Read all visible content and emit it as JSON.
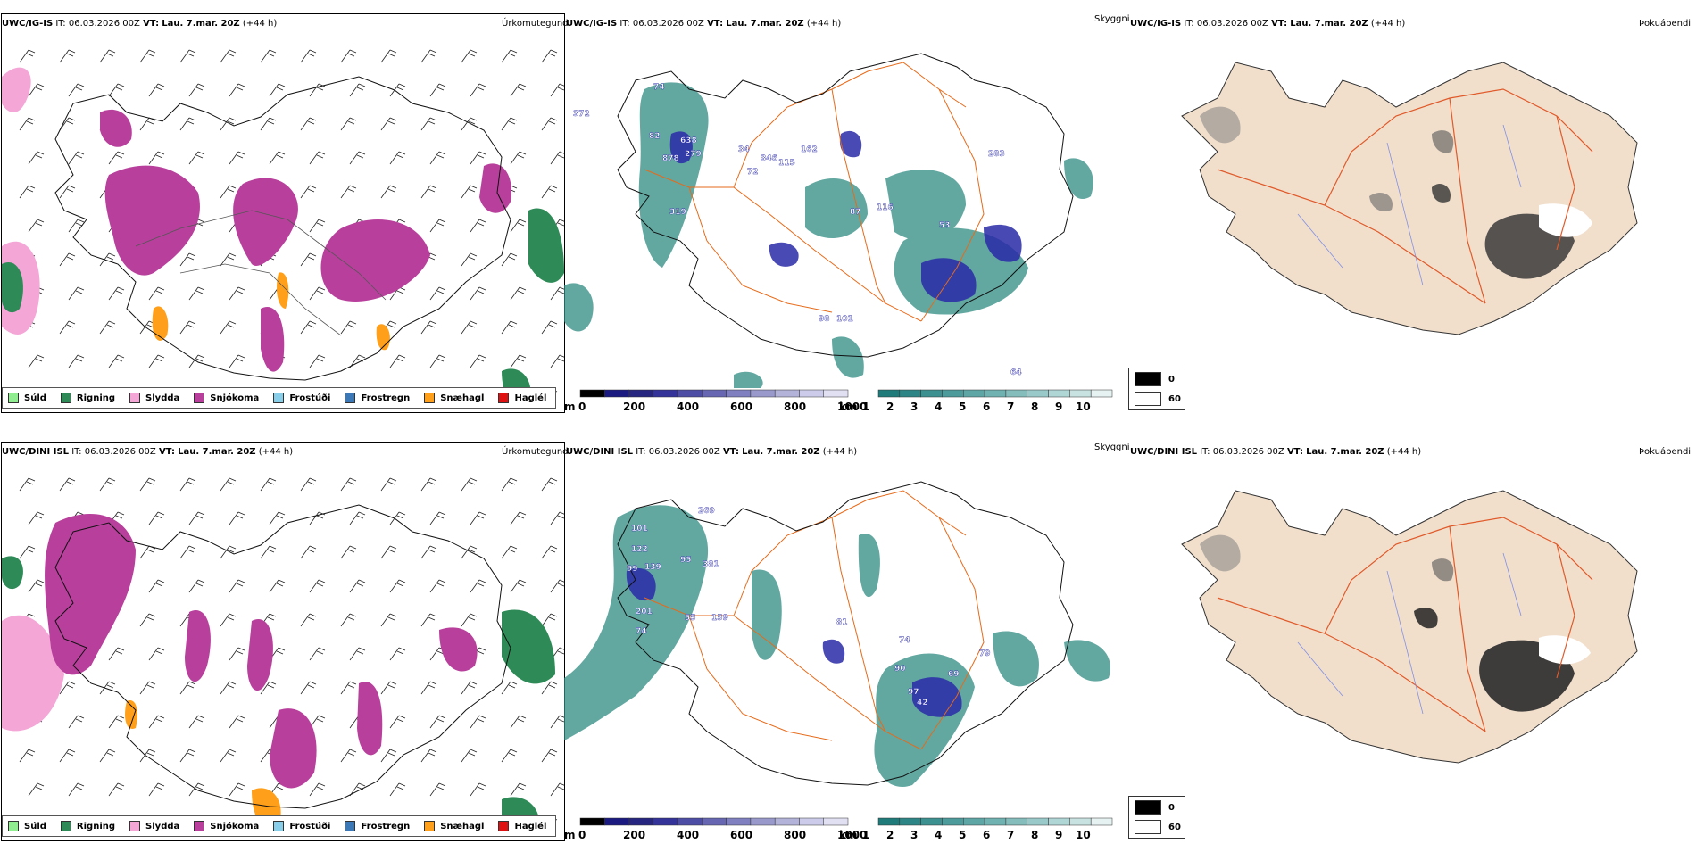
{
  "rows": [
    {
      "model": "UWC/IG-IS",
      "it_label": "IT:",
      "it_value": "06.03.2026 00Z",
      "vt_label": "VT:",
      "vt_value": "Lau. 7.mar. 20Z",
      "lead": "(+44 h)",
      "ridge_labels": [
        "372",
        "74",
        "82",
        "638",
        "279",
        "878",
        "319",
        "34",
        "346",
        "162",
        "72",
        "115",
        "283",
        "87",
        "116",
        "53",
        "98",
        "101",
        "64"
      ]
    },
    {
      "model": "UWC/DINI ISL",
      "it_label": "IT:",
      "it_value": "06.03.2026 00Z",
      "vt_label": "VT:",
      "vt_value": "Lau. 7.mar. 20Z",
      "lead": "(+44 h)",
      "ridge_labels": [
        "269",
        "101",
        "122",
        "99",
        "139",
        "95",
        "381",
        "201",
        "55",
        "159",
        "74",
        "81",
        "74",
        "90",
        "69",
        "79",
        "97",
        "42"
      ]
    }
  ],
  "panel_titles": {
    "precip_type": "Úrkomutegund",
    "visibility": "Skyggni",
    "fog": "Þokuábendi"
  },
  "precip_legend": [
    {
      "label": "Súld",
      "color": "#90ee90"
    },
    {
      "label": "Rigning",
      "color": "#2e8b57"
    },
    {
      "label": "Slydda",
      "color": "#f4a6d7"
    },
    {
      "label": "Snjókoma",
      "color": "#b8409c"
    },
    {
      "label": "Frostúði",
      "color": "#87ceeb"
    },
    {
      "label": "Frostregn",
      "color": "#3a78b8"
    },
    {
      "label": "Snæhagl",
      "color": "#ff9f1a"
    },
    {
      "label": "Haglél",
      "color": "#e01010"
    }
  ],
  "ceiling_scale": {
    "unit": "m",
    "ticks": [
      "0",
      "200",
      "400",
      "600",
      "800",
      "1000"
    ],
    "colors": [
      "#000000",
      "#1a1a80",
      "#262680",
      "#333399",
      "#4d4da6",
      "#6666b3",
      "#8080c0",
      "#9999cc",
      "#b3b3d9",
      "#ccccea",
      "#e0e0f2"
    ]
  },
  "visibility_scale": {
    "unit": "km",
    "ticks": [
      "1",
      "2",
      "3",
      "4",
      "5",
      "6",
      "7",
      "8",
      "9",
      "10"
    ],
    "colors": [
      "#1f7a7a",
      "#2e8585",
      "#3d9090",
      "#4d9b9b",
      "#5ea6a6",
      "#70b1b1",
      "#85bdbd",
      "#9ac9c9",
      "#b0d5d5",
      "#c8e2e2",
      "#e6f1f1"
    ]
  },
  "fog_legend": [
    {
      "label": "0",
      "color": "#000000"
    },
    {
      "label": "60",
      "color": "#ffffff"
    }
  ],
  "colors": {
    "land_fog": "#f1dfcc",
    "roads": "#e66a1a",
    "rivers": "#7f8fe6",
    "visibility": "#2e8b82",
    "cloud_low": "#2a2aa8"
  }
}
